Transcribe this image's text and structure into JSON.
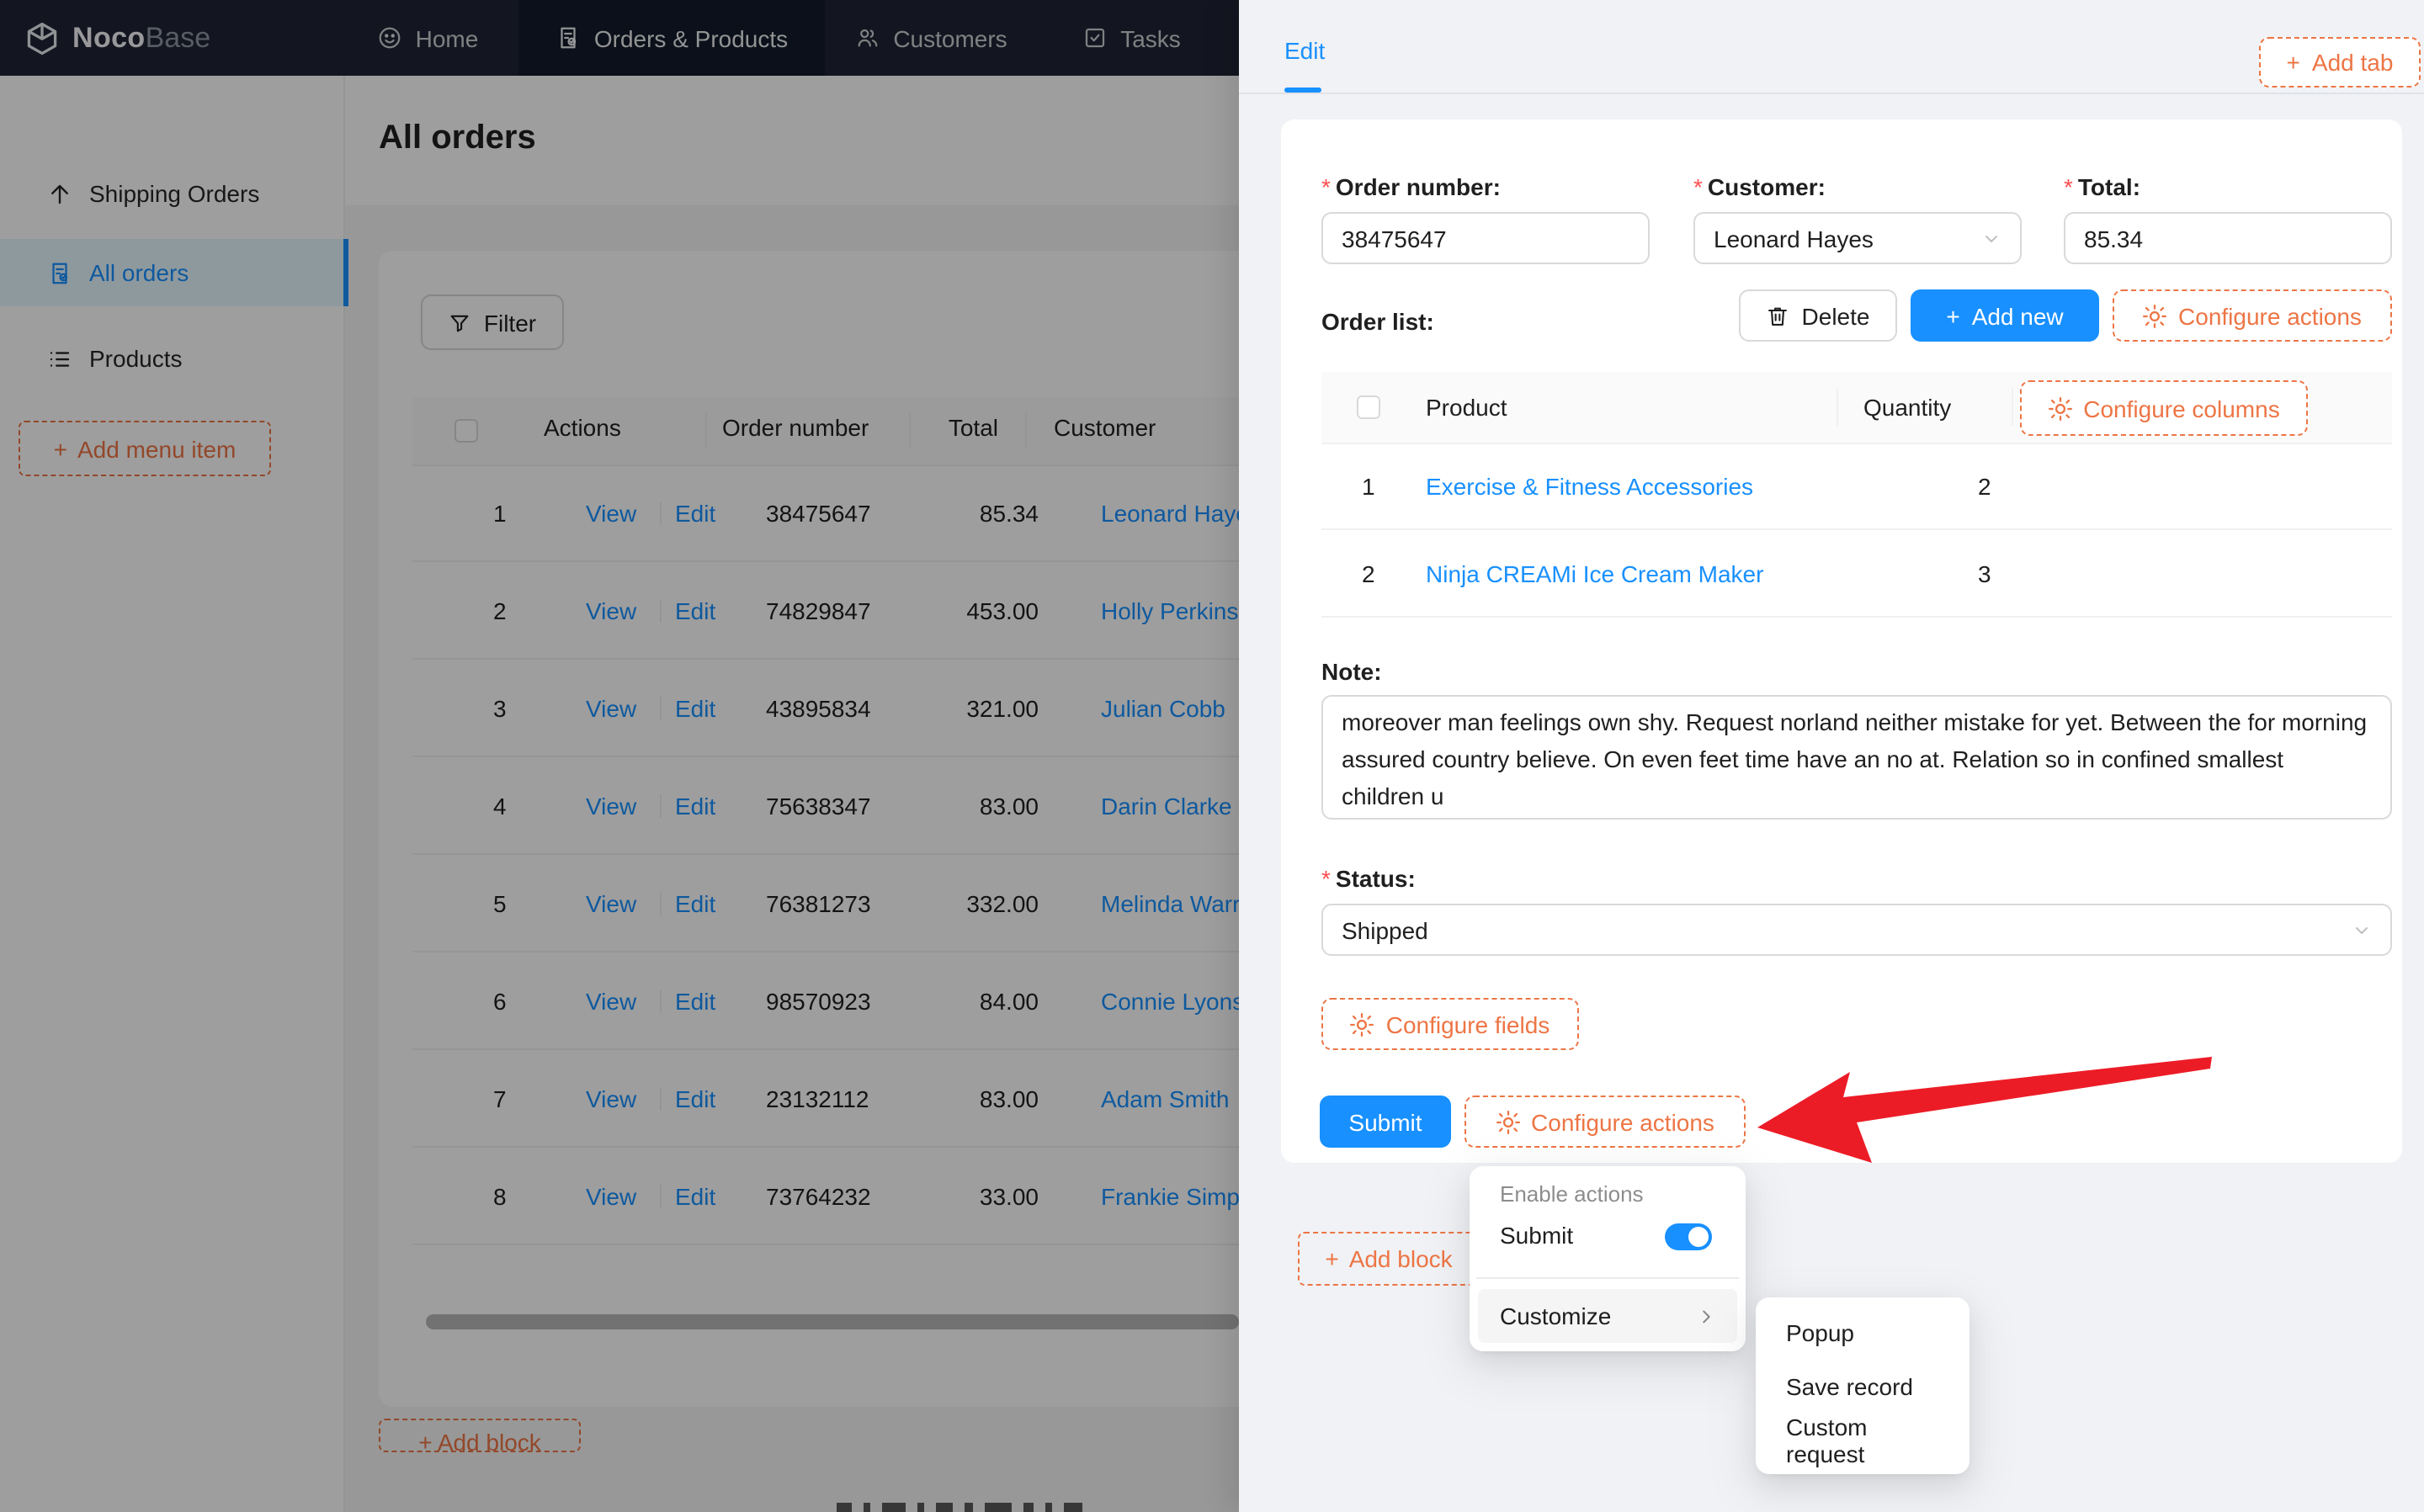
{
  "colors": {
    "accent_blue": "#1890ff",
    "designer_orange": "#ed7545",
    "arrow_red": "#ec1c26",
    "required_red": "#ff4d4f",
    "navbar_bg": "#1f2535",
    "drawer_bg": "#f0f2f5"
  },
  "navbar": {
    "brand": {
      "noco": "Noco",
      "base": "Base"
    },
    "tabs": [
      {
        "label": "Home",
        "active": false
      },
      {
        "label": "Orders & Products",
        "active": true
      },
      {
        "label": "Customers",
        "active": false
      },
      {
        "label": "Tasks",
        "active": false
      }
    ]
  },
  "sidebar": {
    "items": [
      {
        "label": "Shipping Orders",
        "active": false
      },
      {
        "label": "All orders",
        "active": true
      },
      {
        "label": "Products",
        "active": false
      }
    ],
    "add_label": "Add menu item"
  },
  "main": {
    "title": "All orders",
    "filter_label": "Filter",
    "table": {
      "columns": [
        "Actions",
        "Order number",
        "Total",
        "Customer"
      ],
      "row_actions": [
        "View",
        "Edit"
      ],
      "rows": [
        {
          "index": "1",
          "order_number": "38475647",
          "total": "85.34",
          "customer": "Leonard Hayes"
        },
        {
          "index": "2",
          "order_number": "74829847",
          "total": "453.00",
          "customer": "Holly Perkins"
        },
        {
          "index": "3",
          "order_number": "43895834",
          "total": "321.00",
          "customer": "Julian Cobb"
        },
        {
          "index": "4",
          "order_number": "75638347",
          "total": "83.00",
          "customer": "Darin Clarke"
        },
        {
          "index": "5",
          "order_number": "76381273",
          "total": "332.00",
          "customer": "Melinda Warren"
        },
        {
          "index": "6",
          "order_number": "98570923",
          "total": "84.00",
          "customer": "Connie Lyons"
        },
        {
          "index": "7",
          "order_number": "23132112",
          "total": "83.00",
          "customer": "Adam Smith"
        },
        {
          "index": "8",
          "order_number": "73764232",
          "total": "33.00",
          "customer": "Frankie Simpson"
        }
      ]
    },
    "add_block_label": "Add block"
  },
  "drawer": {
    "tab_label": "Edit",
    "add_tab_label": "Add tab",
    "form": {
      "order_number": {
        "label": "Order number:",
        "value": "38475647",
        "required": true
      },
      "customer": {
        "label": "Customer:",
        "value": "Leonard Hayes",
        "required": true
      },
      "total": {
        "label": "Total:",
        "value": "85.34",
        "required": true
      },
      "order_list_label": "Order list:",
      "note": {
        "label": "Note:",
        "value": "moreover man feelings own shy. Request norland neither mistake for yet. Between the for morning assured country believe. On even feet time have an no at. Relation so in confined smallest children u"
      },
      "status": {
        "label": "Status:",
        "value": "Shipped",
        "required": true
      }
    },
    "toolbar": {
      "delete_label": "Delete",
      "add_new_label": "Add new",
      "configure_actions_label": "Configure actions"
    },
    "subtable": {
      "columns": [
        "Product",
        "Quantity"
      ],
      "configure_columns_label": "Configure columns",
      "rows": [
        {
          "index": "1",
          "product": "Exercise & Fitness Accessories",
          "quantity": "2"
        },
        {
          "index": "2",
          "product": "Ninja CREAMi Ice Cream Maker",
          "quantity": "3"
        }
      ]
    },
    "configure_fields_label": "Configure fields",
    "footer": {
      "submit_label": "Submit",
      "configure_actions_label": "Configure actions"
    },
    "add_block_label": "Add block"
  },
  "dropdown": {
    "group_header": "Enable actions",
    "toggle_item": {
      "label": "Submit",
      "enabled": true
    },
    "customize_label": "Customize",
    "submenu": [
      "Popup",
      "Save record",
      "Custom request"
    ]
  }
}
